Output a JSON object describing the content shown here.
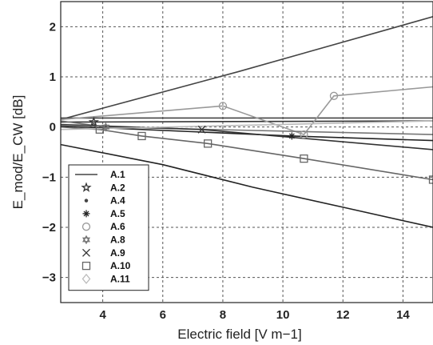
{
  "chart_data": {
    "type": "line",
    "xlabel": "Electric field [V m−1]",
    "ylabel": "E_mod/E_CW [dB]",
    "xlim": [
      2.6,
      15
    ],
    "ylim": [
      -3.5,
      2.5
    ],
    "xticks": [
      4,
      6,
      8,
      10,
      12,
      14
    ],
    "yticks": [
      -3,
      -2,
      -1,
      0,
      1,
      2
    ],
    "xtick_labels": [
      "4",
      "6",
      "8",
      "10",
      "12",
      "14"
    ],
    "ytick_labels": [
      "−3",
      "−2",
      "−1",
      "0",
      "1",
      "2"
    ],
    "grid": true,
    "legend_position": "lower-left",
    "series": [
      {
        "name": "A.1",
        "marker": "none",
        "color": "#444444",
        "x": [
          2.6,
          15
        ],
        "y": [
          0.18,
          0.18
        ]
      },
      {
        "name": "A.2",
        "marker": "star",
        "color": "#333333",
        "x": [
          2.6,
          3.7,
          15
        ],
        "y": [
          0.1,
          0.1,
          0.12
        ]
      },
      {
        "name": "A.4",
        "marker": "dot",
        "color": "#444444",
        "x": [
          2.6,
          8.5,
          15
        ],
        "y": [
          0.15,
          1.1,
          2.2
        ]
      },
      {
        "name": "A.5",
        "marker": "plus",
        "color": "#222222",
        "x": [
          2.6,
          10.3,
          15
        ],
        "y": [
          0.02,
          -0.18,
          -0.27
        ]
      },
      {
        "name": "A.6",
        "marker": "circle",
        "color": "#999999",
        "x": [
          2.6,
          8.0,
          10.7,
          11.7,
          15
        ],
        "y": [
          0.15,
          0.42,
          -0.15,
          0.62,
          0.8
        ]
      },
      {
        "name": "A.8",
        "marker": "hexagram",
        "color": "#777777",
        "x": [
          2.6,
          4.1,
          15
        ],
        "y": [
          0.12,
          0.0,
          -0.15
        ]
      },
      {
        "name": "A.9",
        "marker": "x",
        "color": "#333333",
        "x": [
          2.6,
          7.3,
          15
        ],
        "y": [
          0.05,
          -0.05,
          -0.45
        ]
      },
      {
        "name": "A.10",
        "marker": "square",
        "color": "#666666",
        "x": [
          2.6,
          3.9,
          5.3,
          7.5,
          10.7,
          15
        ],
        "y": [
          0.0,
          -0.05,
          -0.18,
          -0.33,
          -0.63,
          -1.05
        ]
      },
      {
        "name": "A.11",
        "marker": "diamond",
        "color": "#bbbbbb",
        "x": [
          2.6,
          15
        ],
        "y": [
          -0.05,
          0.12
        ]
      },
      {
        "name": "",
        "marker": "none",
        "color": "#222222",
        "x": [
          2.6,
          6,
          9,
          12,
          15
        ],
        "y": [
          -0.35,
          -0.75,
          -1.2,
          -1.6,
          -2.0
        ]
      }
    ],
    "markers": [
      {
        "series": "A.2",
        "x": 3.7,
        "y": 0.1
      },
      {
        "series": "A.5",
        "x": 10.3,
        "y": -0.18
      },
      {
        "series": "A.6",
        "x": 8.0,
        "y": 0.42
      },
      {
        "series": "A.6",
        "x": 10.7,
        "y": -0.15
      },
      {
        "series": "A.6",
        "x": 11.7,
        "y": 0.62
      },
      {
        "series": "A.8",
        "x": 4.1,
        "y": 0.0
      },
      {
        "series": "A.9",
        "x": 7.3,
        "y": -0.05
      },
      {
        "series": "A.10",
        "x": 3.9,
        "y": -0.05
      },
      {
        "series": "A.10",
        "x": 5.3,
        "y": -0.18
      },
      {
        "series": "A.10",
        "x": 7.5,
        "y": -0.33
      },
      {
        "series": "A.10",
        "x": 10.7,
        "y": -0.63
      },
      {
        "series": "A.10",
        "x": 15.0,
        "y": -1.05
      }
    ]
  }
}
